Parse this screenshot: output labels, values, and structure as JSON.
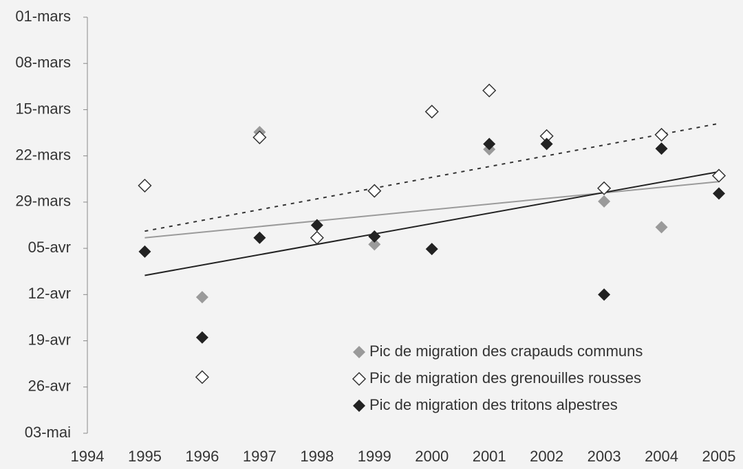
{
  "chart_data": {
    "type": "scatter",
    "xlim": [
      1994,
      2005
    ],
    "xticks": [
      1994,
      1995,
      1996,
      1997,
      1998,
      1999,
      2000,
      2001,
      2002,
      2003,
      2004,
      2005
    ],
    "ylim": [
      0,
      63
    ],
    "y_reversed": true,
    "yticks": [
      {
        "value": 0,
        "label": "01-mars"
      },
      {
        "value": 7,
        "label": "08-mars"
      },
      {
        "value": 14,
        "label": "15-mars"
      },
      {
        "value": 21,
        "label": "22-mars"
      },
      {
        "value": 28,
        "label": "29-mars"
      },
      {
        "value": 35,
        "label": "05-avr"
      },
      {
        "value": 42,
        "label": "12-avr"
      },
      {
        "value": 49,
        "label": "19-avr"
      },
      {
        "value": 56,
        "label": "26-avr"
      },
      {
        "value": 63,
        "label": "03-mai"
      }
    ],
    "legend": "lower right",
    "series": [
      {
        "name": "Pic de migration des crapauds communs",
        "color": "#9a9a9a",
        "marker": "filled",
        "trend_style": "solid",
        "x": [
          1996,
          1997,
          1999,
          2001,
          2003,
          2004
        ],
        "values": [
          42.4,
          17.4,
          34.4,
          20,
          27.9,
          31.8
        ],
        "trend_x": [
          1995,
          2005
        ],
        "trend": [
          33.4,
          24.9
        ]
      },
      {
        "name": "Pic de migration des grenouilles rousses",
        "color": "#333333",
        "marker": "open",
        "trend_style": "dotted",
        "x": [
          1995,
          1996,
          1997,
          1998,
          1999,
          2000,
          2001,
          2002,
          2003,
          2004,
          2005
        ],
        "values": [
          25.5,
          54.5,
          18.2,
          33.4,
          26.3,
          14.3,
          11.1,
          18,
          25.9,
          17.8,
          24
        ],
        "trend_x": [
          1995,
          2005
        ],
        "trend": [
          32.4,
          16.1
        ]
      },
      {
        "name": "Pic de migration des tritons alpestres",
        "color": "#222222",
        "marker": "filled",
        "trend_style": "solid",
        "x": [
          1995,
          1996,
          1997,
          1998,
          1999,
          2000,
          2001,
          2002,
          2003,
          2004,
          2005
        ],
        "values": [
          35.5,
          48.5,
          33.4,
          31.5,
          33.2,
          35.1,
          19.2,
          19.2,
          42,
          19.9,
          26.7
        ],
        "trend_x": [
          1995,
          2005
        ],
        "trend": [
          39.1,
          23.4
        ]
      }
    ]
  }
}
